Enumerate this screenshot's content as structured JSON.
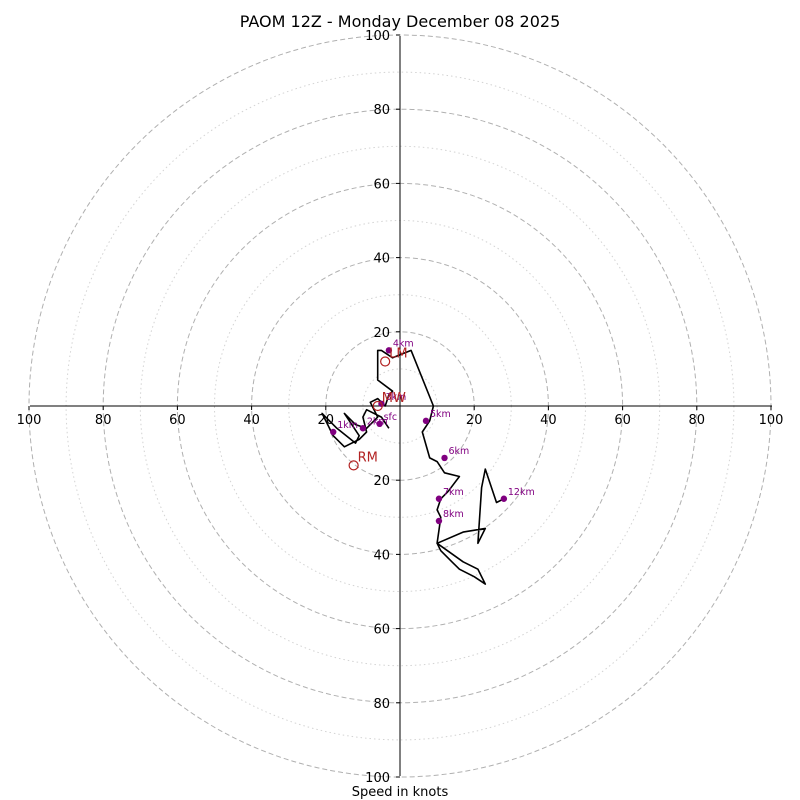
{
  "chart_data": {
    "type": "hodograph",
    "title": "PAOM 12Z - Monday December 08 2025",
    "xlabel": "Speed in knots",
    "units": "knots",
    "range": [
      -100,
      100
    ],
    "ring_major": [
      20,
      40,
      60,
      80,
      100
    ],
    "ring_minor": [
      10,
      30,
      50,
      70,
      90
    ],
    "tick_values": [
      20,
      40,
      60,
      80,
      100
    ],
    "trace": [
      [
        -3,
        -6
      ],
      [
        -5,
        -3
      ],
      [
        -9,
        -1
      ],
      [
        -10,
        -3
      ],
      [
        -9,
        -7
      ],
      [
        -11,
        -9
      ],
      [
        -15,
        -11
      ],
      [
        -18,
        -8
      ],
      [
        -21,
        -2
      ],
      [
        -17,
        -6
      ],
      [
        -12,
        -10
      ],
      [
        -11,
        -8
      ],
      [
        -15,
        -2
      ],
      [
        -12,
        -5
      ],
      [
        -9,
        -6
      ],
      [
        -6,
        -3
      ],
      [
        -8,
        1
      ],
      [
        -6,
        2
      ],
      [
        -4,
        0
      ],
      [
        -3,
        3
      ],
      [
        -2,
        4
      ],
      [
        -6,
        7
      ],
      [
        -6,
        15
      ],
      [
        -5,
        15
      ],
      [
        -2,
        13
      ],
      [
        3,
        15
      ],
      [
        9,
        0
      ],
      [
        8,
        -4
      ],
      [
        6,
        -7
      ],
      [
        8,
        -14
      ],
      [
        10,
        -15
      ],
      [
        12,
        -18
      ],
      [
        16,
        -19
      ],
      [
        13,
        -23
      ],
      [
        11,
        -25
      ],
      [
        10,
        -28
      ],
      [
        11,
        -30
      ],
      [
        10,
        -37
      ],
      [
        17,
        -42
      ],
      [
        21,
        -44
      ],
      [
        23,
        -48
      ],
      [
        20,
        -46
      ],
      [
        16,
        -44
      ],
      [
        14,
        -42
      ],
      [
        11,
        -39
      ],
      [
        10,
        -37
      ],
      [
        17,
        -34
      ],
      [
        23,
        -33
      ],
      [
        21,
        -37
      ],
      [
        22,
        -22
      ],
      [
        23,
        -17
      ],
      [
        26,
        -26
      ],
      [
        28,
        -25
      ]
    ],
    "height_markers": [
      {
        "label": "sfc",
        "u": -5.5,
        "v": -4.8
      },
      {
        "label": "1km",
        "u": -18,
        "v": -7
      },
      {
        "label": "2km",
        "u": -10,
        "v": -6
      },
      {
        "label": "3km",
        "u": -5,
        "v": 0.6
      },
      {
        "label": "4km",
        "u": -3,
        "v": 15
      },
      {
        "label": "5km",
        "u": 7,
        "v": -4
      },
      {
        "label": "6km",
        "u": 12,
        "v": -14
      },
      {
        "label": "7km",
        "u": 10.5,
        "v": -25
      },
      {
        "label": "8km",
        "u": 10.5,
        "v": -31
      },
      {
        "label": "12km",
        "u": 28,
        "v": -25
      }
    ],
    "storm_motion": [
      {
        "label": "LM",
        "u": -4,
        "v": 12
      },
      {
        "label": "MW",
        "u": -6,
        "v": 0
      },
      {
        "label": "RM",
        "u": -12.5,
        "v": -16
      }
    ],
    "colors": {
      "trace": "#000000",
      "height_marker": "#800080",
      "storm_motion": "#b22222",
      "grid": "#b0b0b0",
      "grid_minor": "#d3d3d3",
      "axis": "#000000"
    }
  }
}
